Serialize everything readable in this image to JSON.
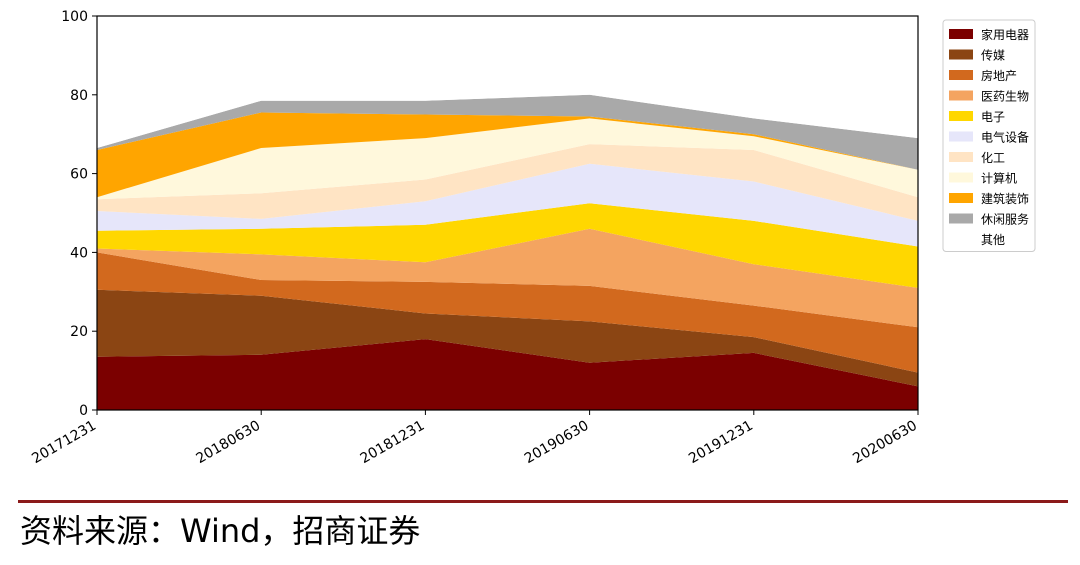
{
  "source_note": "资料来源：Wind，招商证券",
  "colors": {
    "rule": "#8b1a1a",
    "frame": "#000000"
  },
  "chart_data": {
    "type": "area",
    "stacked": true,
    "categories": [
      "20171231",
      "20180630",
      "20181231",
      "20190630",
      "20191231",
      "20200630"
    ],
    "ylim": [
      0,
      100
    ],
    "yticks": [
      0,
      20,
      40,
      60,
      80,
      100
    ],
    "legend_position": "right",
    "series": [
      {
        "name": "家用电器",
        "color": "#7b0000",
        "values": [
          13.5,
          14.0,
          18.0,
          12.0,
          14.5,
          6.0
        ]
      },
      {
        "name": "传媒",
        "color": "#8b4513",
        "values": [
          17.0,
          15.0,
          6.5,
          10.5,
          4.0,
          3.5
        ]
      },
      {
        "name": "房地产",
        "color": "#d2691e",
        "values": [
          9.5,
          4.0,
          8.0,
          9.0,
          8.0,
          11.5
        ]
      },
      {
        "name": "医药生物",
        "color": "#f4a460",
        "values": [
          1.0,
          6.5,
          5.0,
          14.5,
          10.5,
          10.0
        ]
      },
      {
        "name": "电子",
        "color": "#ffd700",
        "values": [
          4.5,
          6.5,
          9.5,
          6.5,
          11.0,
          10.5
        ]
      },
      {
        "name": "电气设备",
        "color": "#e6e6fa",
        "values": [
          5.0,
          2.5,
          6.0,
          10.0,
          10.0,
          6.5
        ]
      },
      {
        "name": "化工",
        "color": "#ffe4c4",
        "values": [
          3.0,
          6.5,
          5.5,
          5.0,
          8.0,
          6.0
        ]
      },
      {
        "name": "计算机",
        "color": "#fff8dc",
        "values": [
          0.5,
          11.5,
          10.5,
          6.5,
          3.5,
          7.0
        ]
      },
      {
        "name": "建筑装饰",
        "color": "#ffa500",
        "values": [
          12.0,
          9.0,
          6.0,
          0.5,
          0.5,
          0.0
        ]
      },
      {
        "name": "休闲服务",
        "color": "#a9a9a9",
        "values": [
          0.5,
          3.0,
          3.5,
          5.5,
          4.0,
          8.0
        ]
      },
      {
        "name": "其他",
        "color": "#ffffff",
        "values": [
          34.0,
          21.5,
          21.5,
          20.0,
          26.0,
          31.0
        ]
      }
    ]
  }
}
